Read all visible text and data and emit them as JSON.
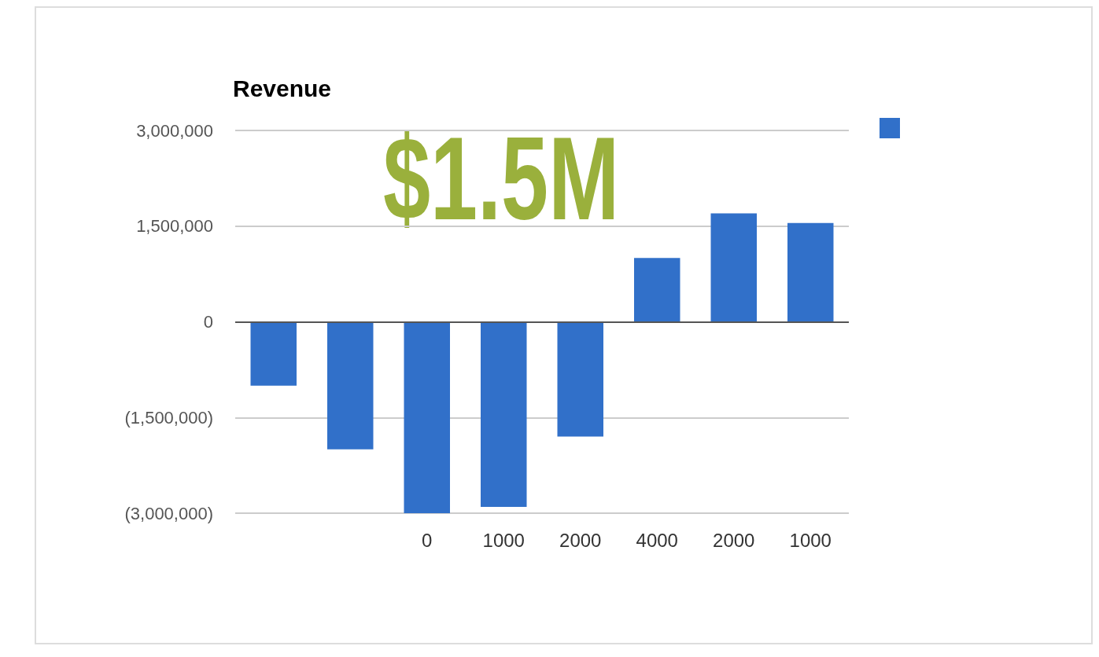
{
  "chart_data": {
    "type": "bar",
    "title": "Revenue",
    "annotations": [
      "$1.5M"
    ],
    "categories": [
      null,
      null,
      "0",
      "1000",
      "2000",
      "4000",
      "2000",
      "1000"
    ],
    "series": [
      {
        "color": "#3170c9",
        "values": [
          -1000000,
          -2000000,
          -3000000,
          -2900000,
          -1800000,
          1000000,
          1700000,
          1550000
        ]
      }
    ],
    "ylim": [
      -3000000,
      3000000
    ],
    "yticks": [
      {
        "value": -3000000,
        "label": "(3,000,000)"
      },
      {
        "value": -1500000,
        "label": "(1,500,000)"
      },
      0,
      {
        "value": 1500000,
        "label": "1,500,000"
      },
      {
        "value": 3000000,
        "label": "3,000,000"
      }
    ],
    "grid": "y"
  }
}
